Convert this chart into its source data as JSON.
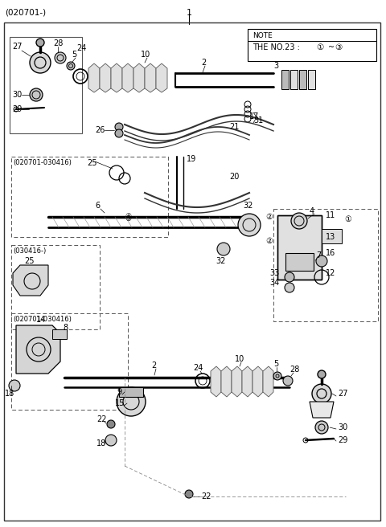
{
  "title": "(020701-)",
  "part_number": "1",
  "bg_color": "#ffffff",
  "line_color": "#000000",
  "note_line1": "NOTE",
  "note_line2": "THE NO.23 : ①~③"
}
